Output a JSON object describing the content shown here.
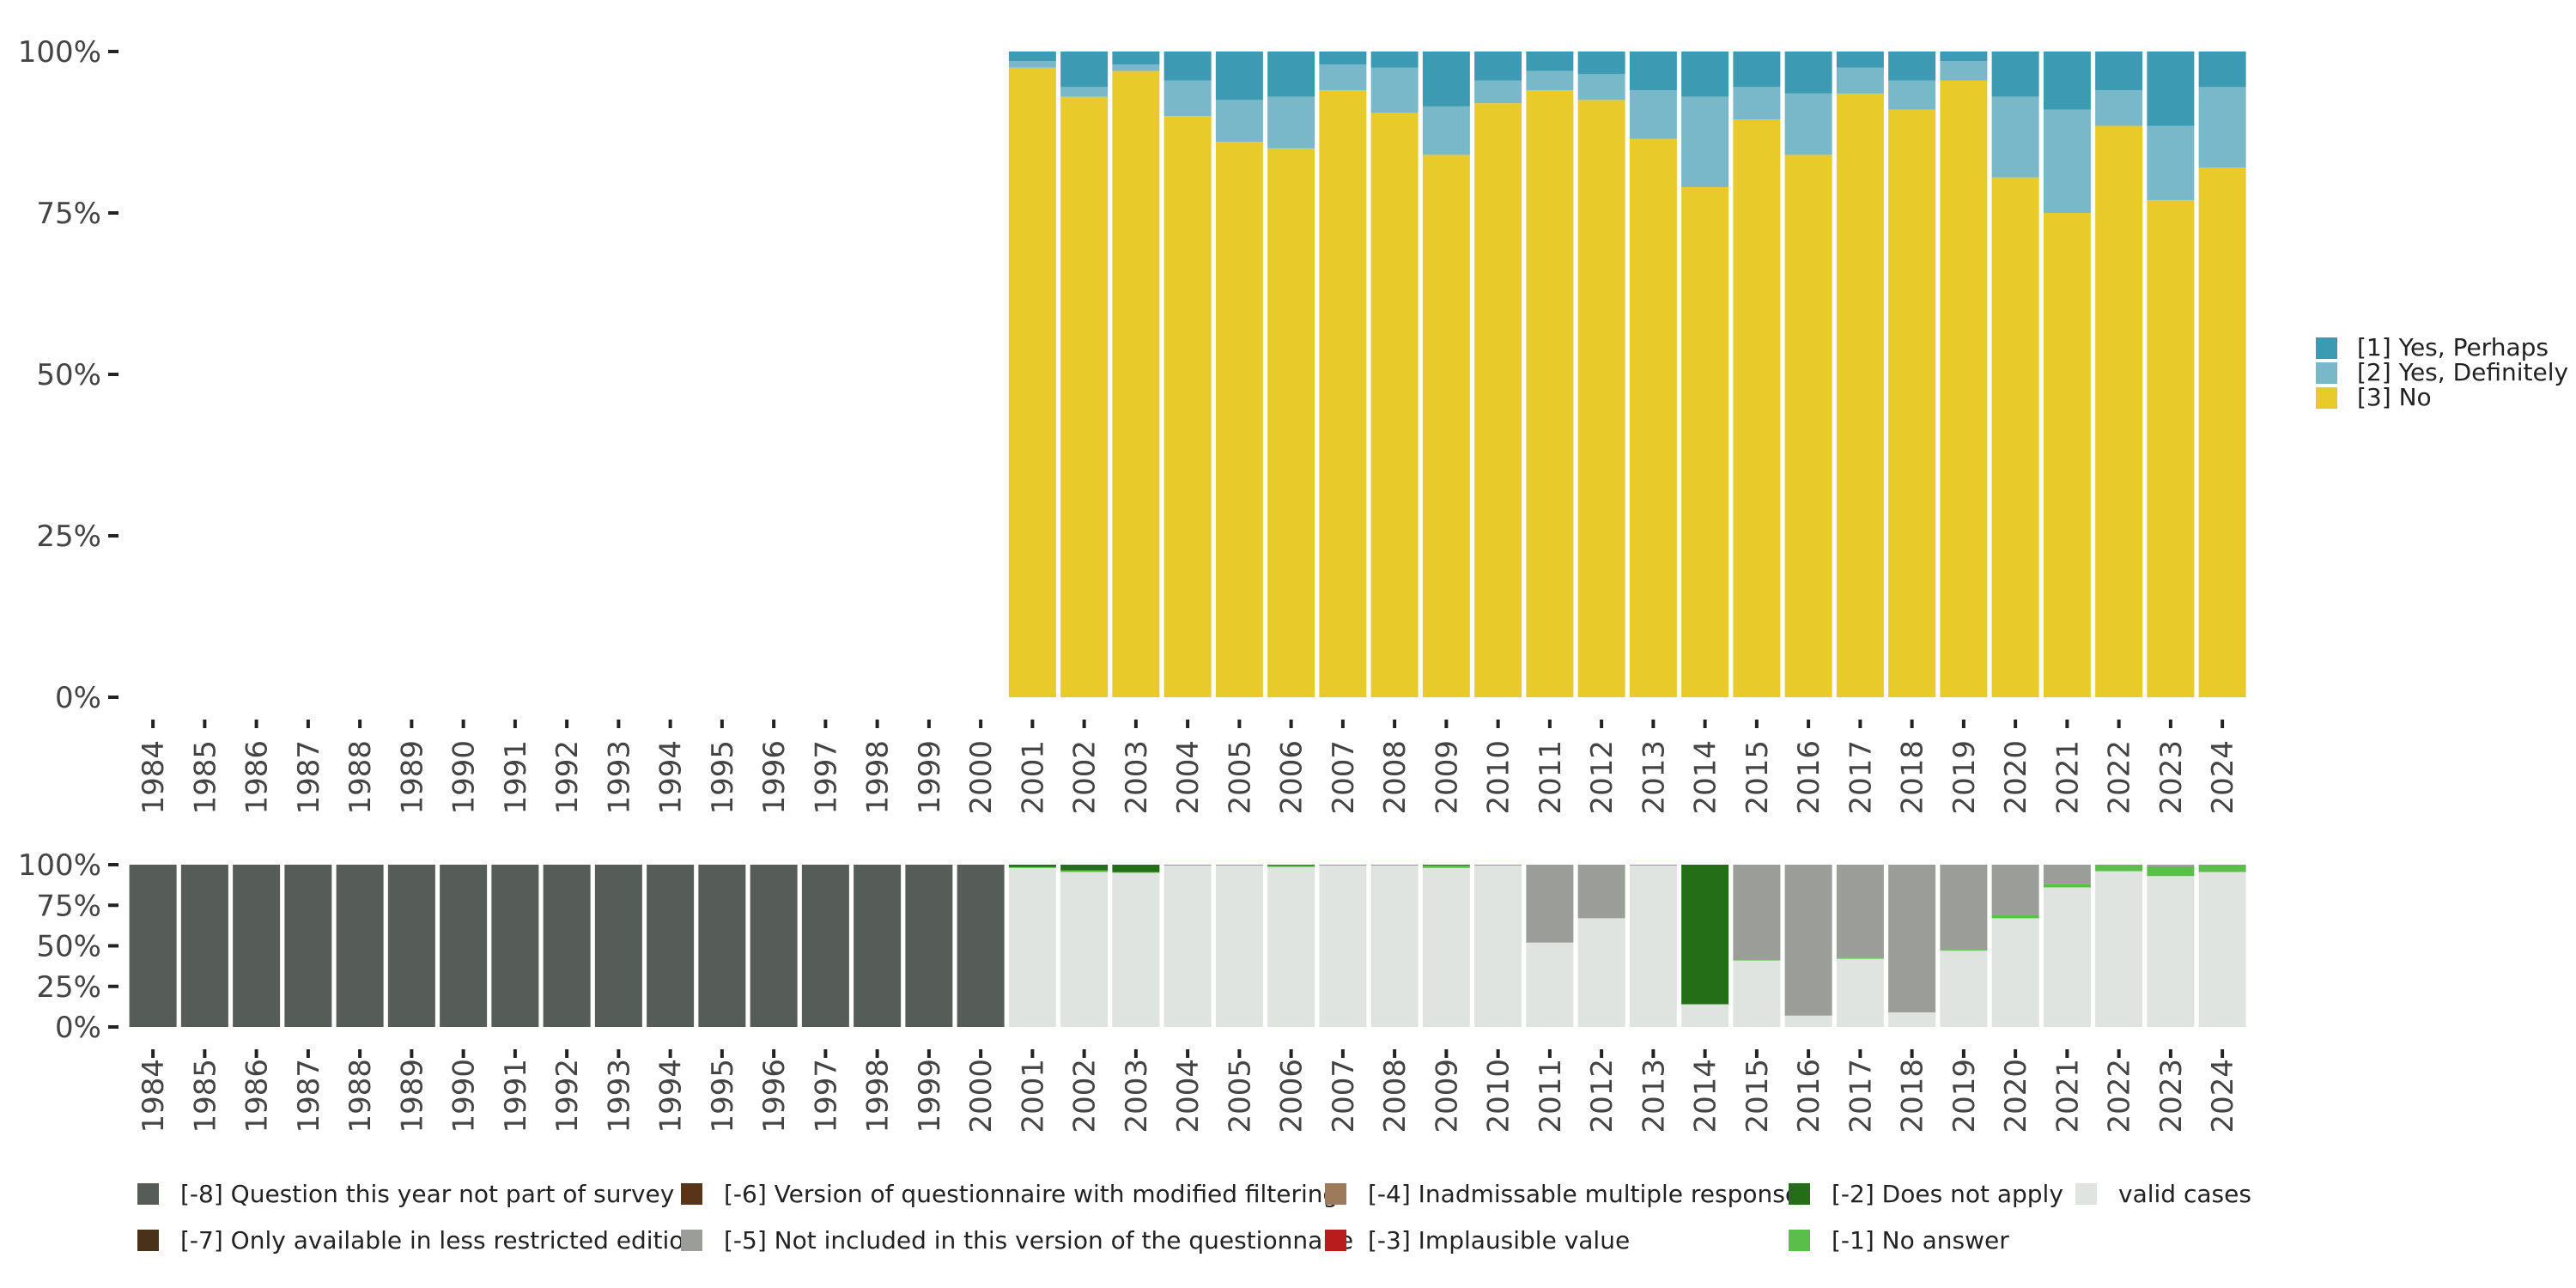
{
  "chart_data": [
    {
      "type": "bar",
      "stacked": true,
      "title": "",
      "xlabel": "",
      "ylabel": "",
      "ylim": [
        0,
        100
      ],
      "y_ticks": [
        "0%",
        "25%",
        "50%",
        "75%",
        "100%"
      ],
      "categories": [
        "1984",
        "1985",
        "1986",
        "1987",
        "1988",
        "1989",
        "1990",
        "1991",
        "1992",
        "1993",
        "1994",
        "1995",
        "1996",
        "1997",
        "1998",
        "1999",
        "2000",
        "2001",
        "2002",
        "2003",
        "2004",
        "2005",
        "2006",
        "2007",
        "2008",
        "2009",
        "2010",
        "2011",
        "2012",
        "2013",
        "2014",
        "2015",
        "2016",
        "2017",
        "2018",
        "2019",
        "2020",
        "2021",
        "2022",
        "2023",
        "2024"
      ],
      "legend_position": "right",
      "series": [
        {
          "name": "[3] No",
          "color": "#E8CB2B",
          "values": [
            null,
            null,
            null,
            null,
            null,
            null,
            null,
            null,
            null,
            null,
            null,
            null,
            null,
            null,
            null,
            null,
            null,
            97.5,
            93,
            97,
            90,
            86,
            85,
            94,
            90.5,
            84,
            92,
            94,
            92.5,
            86.5,
            79,
            89.5,
            84,
            93.5,
            91,
            95.5,
            80.5,
            75,
            88.5,
            77,
            82
          ]
        },
        {
          "name": "[2] Yes, Definitely",
          "color": "#79B8C8",
          "values": [
            null,
            null,
            null,
            null,
            null,
            null,
            null,
            null,
            null,
            null,
            null,
            null,
            null,
            null,
            null,
            null,
            null,
            1,
            1.5,
            1,
            5.5,
            6.5,
            8,
            4,
            7,
            7.5,
            3.5,
            3,
            4,
            7.5,
            14,
            5,
            9.5,
            4,
            4.5,
            3,
            12.5,
            16,
            5.5,
            11.5,
            12.5
          ]
        },
        {
          "name": "[1] Yes, Perhaps",
          "color": "#3C9AB2",
          "values": [
            null,
            null,
            null,
            null,
            null,
            null,
            null,
            null,
            null,
            null,
            null,
            null,
            null,
            null,
            null,
            null,
            null,
            1.5,
            5.5,
            2,
            4.5,
            7.5,
            7,
            2,
            2.5,
            8.5,
            4.5,
            3,
            3.5,
            6,
            7,
            5.5,
            6.5,
            2.5,
            4.5,
            1.5,
            7,
            9,
            6,
            11.5,
            5.5
          ]
        }
      ]
    },
    {
      "type": "bar",
      "stacked": true,
      "title": "",
      "xlabel": "",
      "ylabel": "",
      "ylim": [
        0,
        100
      ],
      "y_ticks": [
        "0%",
        "25%",
        "50%",
        "75%",
        "100%"
      ],
      "categories": [
        "1984",
        "1985",
        "1986",
        "1987",
        "1988",
        "1989",
        "1990",
        "1991",
        "1992",
        "1993",
        "1994",
        "1995",
        "1996",
        "1997",
        "1998",
        "1999",
        "2000",
        "2001",
        "2002",
        "2003",
        "2004",
        "2005",
        "2006",
        "2007",
        "2008",
        "2009",
        "2010",
        "2011",
        "2012",
        "2013",
        "2014",
        "2015",
        "2016",
        "2017",
        "2018",
        "2019",
        "2020",
        "2021",
        "2022",
        "2023",
        "2024"
      ],
      "legend_position": "bottom",
      "legend": [
        {
          "name": "[-8] Question this year not part of survey",
          "color": "#565D58"
        },
        {
          "name": "[-7] Only available in less restricted edition",
          "color": "#4A321A"
        },
        {
          "name": "[-6] Version of questionnaire with modified filtering",
          "color": "#5A3418"
        },
        {
          "name": "[-5] Not included in this version of the questionnaire",
          "color": "#9A9D98"
        },
        {
          "name": "[-4] Inadmissable multiple response",
          "color": "#9C7A5A"
        },
        {
          "name": "[-3] Implausible value",
          "color": "#B81C1C"
        },
        {
          "name": "[-2] Does not apply",
          "color": "#236E16"
        },
        {
          "name": "[-1] No answer",
          "color": "#5BBE4B"
        },
        {
          "name": "valid cases",
          "color": "#E0E4E0"
        }
      ],
      "series": [
        {
          "name": "valid cases",
          "color": "#E0E4E0",
          "values": [
            0,
            0,
            0,
            0,
            0,
            0,
            0,
            0,
            0,
            0,
            0,
            0,
            0,
            0,
            0,
            0,
            0,
            98,
            95.5,
            95,
            99.5,
            99.5,
            98.5,
            99.5,
            99.5,
            98,
            99.5,
            52,
            67,
            99.5,
            14,
            41,
            7,
            42,
            9,
            47,
            67,
            86,
            96,
            93,
            95.5
          ]
        },
        {
          "name": "[-1] No answer",
          "color": "#5BBE4B",
          "values": [
            0,
            0,
            0,
            0,
            0,
            0,
            0,
            0,
            0,
            0,
            0,
            0,
            0,
            0,
            0,
            0,
            0,
            0.5,
            1,
            0.5,
            0.5,
            0.5,
            1,
            0.5,
            0.5,
            1.5,
            0.5,
            0,
            0,
            0.5,
            0,
            0.5,
            0,
            0.5,
            0,
            0.5,
            2,
            2,
            4,
            6,
            4.5
          ]
        },
        {
          "name": "[-2] Does not apply",
          "color": "#236E16",
          "values": [
            0,
            0,
            0,
            0,
            0,
            0,
            0,
            0,
            0,
            0,
            0,
            0,
            0,
            0,
            0,
            0,
            0,
            1.5,
            3.5,
            4.5,
            0,
            0,
            0.5,
            0,
            0,
            0.5,
            0,
            0,
            0,
            0,
            86,
            0,
            0,
            0,
            0,
            0,
            0,
            0,
            0,
            0,
            0
          ]
        },
        {
          "name": "[-5] Not included in this version of the questionnaire",
          "color": "#9A9D98",
          "values": [
            0,
            0,
            0,
            0,
            0,
            0,
            0,
            0,
            0,
            0,
            0,
            0,
            0,
            0,
            0,
            0,
            0,
            0,
            0,
            0,
            0,
            0,
            0,
            0,
            0,
            0,
            0,
            48,
            33,
            0,
            0,
            58.5,
            93,
            57.5,
            91,
            52.5,
            31,
            12,
            0,
            1,
            0
          ]
        },
        {
          "name": "[-8] Question this year not part of survey",
          "color": "#565D58",
          "values": [
            100,
            100,
            100,
            100,
            100,
            100,
            100,
            100,
            100,
            100,
            100,
            100,
            100,
            100,
            100,
            100,
            100,
            0,
            0,
            0,
            0,
            0,
            0,
            0,
            0,
            0,
            0,
            0,
            0,
            0,
            0,
            0,
            0,
            0,
            0,
            0,
            0,
            0,
            0,
            0,
            0
          ]
        }
      ]
    }
  ]
}
